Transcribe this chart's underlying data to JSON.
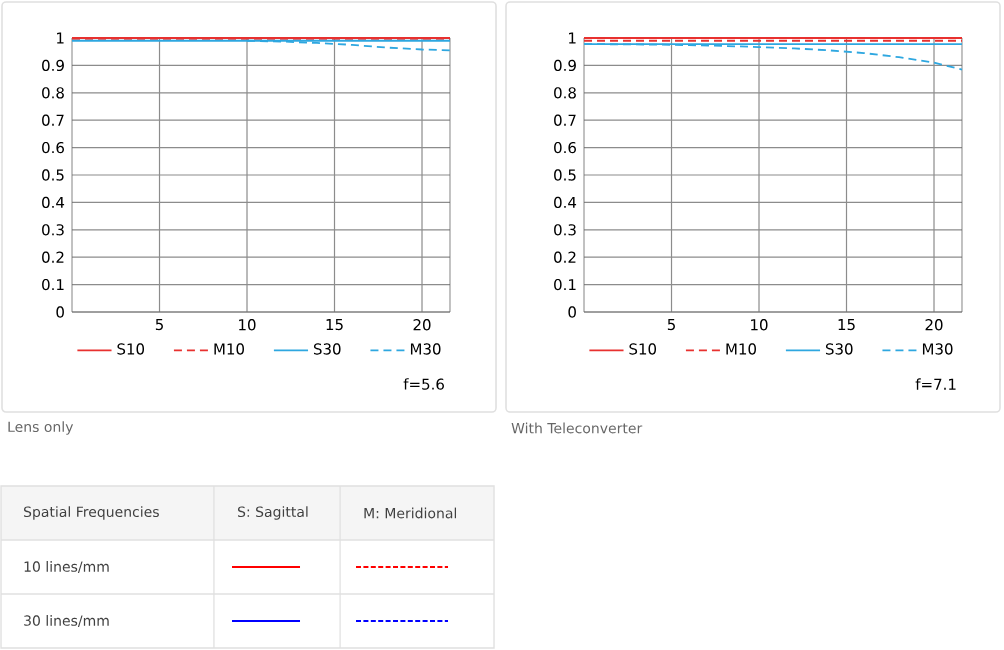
{
  "chart_data": [
    {
      "type": "line",
      "x": [
        0,
        2,
        4,
        6,
        8,
        10,
        12,
        14,
        16,
        18,
        20,
        21.6
      ],
      "xlim": [
        0,
        21.6
      ],
      "xticks": [
        5,
        10,
        15,
        20
      ],
      "ylim": [
        0,
        1
      ],
      "yticks": [
        0,
        0.1,
        0.2,
        0.3,
        0.4,
        0.5,
        0.6,
        0.7,
        0.8,
        0.9,
        1
      ],
      "grid": true,
      "legend": "bottom",
      "series": [
        {
          "name": "S10",
          "color": "#e8312f",
          "line_style": "solid",
          "values": [
            1,
            1,
            1,
            1,
            1,
            1,
            1,
            1,
            1,
            1,
            1,
            1
          ]
        },
        {
          "name": "M10",
          "color": "#e8312f",
          "line_style": "dashed",
          "values": [
            0.997,
            0.997,
            0.997,
            0.997,
            0.997,
            0.997,
            0.997,
            0.997,
            0.997,
            0.997,
            0.997,
            0.997
          ]
        },
        {
          "name": "S30",
          "color": "#2ea7e0",
          "line_style": "solid",
          "values": [
            0.99,
            0.99,
            0.99,
            0.99,
            0.99,
            0.99,
            0.99,
            0.99,
            0.99,
            0.99,
            0.99,
            0.99
          ]
        },
        {
          "name": "M30",
          "color": "#2ea7e0",
          "line_style": "dashed",
          "values": [
            null,
            null,
            null,
            null,
            null,
            0.99,
            0.987,
            0.982,
            0.975,
            0.965,
            0.958,
            0.955
          ]
        }
      ],
      "annotations": [
        "f=5.6",
        "Lens only"
      ]
    },
    {
      "type": "line",
      "x": [
        0,
        2,
        4,
        6,
        8,
        10,
        12,
        14,
        16,
        18,
        20,
        21.6
      ],
      "xlim": [
        0,
        21.6
      ],
      "xticks": [
        5,
        10,
        15,
        20
      ],
      "ylim": [
        0,
        1
      ],
      "yticks": [
        0,
        0.1,
        0.2,
        0.3,
        0.4,
        0.5,
        0.6,
        0.7,
        0.8,
        0.9,
        1
      ],
      "grid": true,
      "legend": "bottom",
      "series": [
        {
          "name": "S10",
          "color": "#e8312f",
          "line_style": "solid",
          "values": [
            1,
            1,
            1,
            1,
            1,
            1,
            1,
            1,
            1,
            1,
            1,
            1
          ]
        },
        {
          "name": "M10",
          "color": "#e8312f",
          "line_style": "dashed",
          "values": [
            0.99,
            0.99,
            0.99,
            0.99,
            0.99,
            0.99,
            0.99,
            0.99,
            0.99,
            0.99,
            0.99,
            0.99
          ]
        },
        {
          "name": "S30",
          "color": "#2ea7e0",
          "line_style": "solid",
          "values": [
            0.978,
            0.978,
            0.978,
            0.978,
            0.978,
            0.978,
            0.978,
            0.978,
            0.978,
            0.978,
            0.978,
            0.978
          ]
        },
        {
          "name": "M30",
          "color": "#2ea7e0",
          "line_style": "dashed",
          "values": [
            0.978,
            0.977,
            0.976,
            0.974,
            0.971,
            0.967,
            0.962,
            0.955,
            0.945,
            0.93,
            0.91,
            0.885
          ]
        }
      ],
      "annotations": [
        "f=7.1",
        "With Teleconverter"
      ]
    },
    {
      "type": "other",
      "annotations": [
        "Spatial Frequencies",
        "S: Sagittal",
        "M: Meridional",
        "10 lines/mm",
        "30 lines/mm"
      ]
    }
  ]
}
